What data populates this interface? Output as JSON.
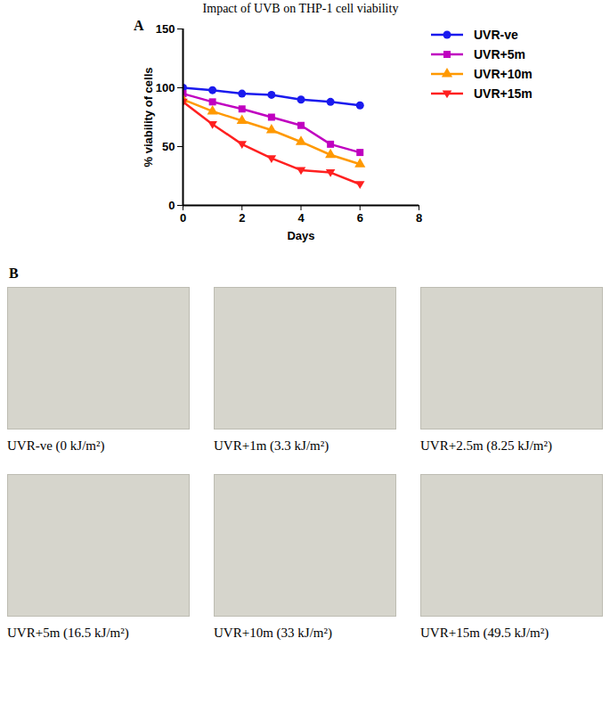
{
  "chart_data": {
    "type": "line",
    "panel_label": "A",
    "title": "Impact of UVB on THP-1 cell viability",
    "x_label": "Days",
    "y_label": "% viability of cells",
    "x": [
      0,
      1,
      2,
      3,
      4,
      5,
      6
    ],
    "series": [
      {
        "name": "UVR-ve",
        "color": "#1a1aee",
        "marker": "circle",
        "values": [
          100,
          98,
          95,
          94,
          90,
          88,
          85
        ]
      },
      {
        "name": "UVR+5m",
        "color": "#c000c0",
        "marker": "square",
        "values": [
          95,
          88,
          82,
          75,
          68,
          52,
          45
        ]
      },
      {
        "name": "UVR+10m",
        "color": "#ff9900",
        "marker": "triangle",
        "values": [
          90,
          80,
          72,
          64,
          54,
          43,
          35
        ]
      },
      {
        "name": "UVR+15m",
        "color": "#ff2020",
        "marker": "triangle-down",
        "values": [
          88,
          69,
          52,
          40,
          30,
          28,
          18
        ]
      }
    ],
    "xlim": [
      0,
      8
    ],
    "xticks": [
      0,
      2,
      4,
      6,
      8
    ],
    "ylim": [
      0,
      150
    ],
    "yticks": [
      0,
      50,
      100,
      150
    ],
    "grid": false,
    "legend": "right"
  },
  "panel_b": {
    "label": "B",
    "captions": [
      "UVR-ve (0 kJ/m²)",
      "UVR+1m (3.3 kJ/m²)",
      "UVR+2.5m (8.25 kJ/m²)",
      "UVR+5m (16.5 kJ/m²)",
      "UVR+10m (33 kJ/m²)",
      "UVR+15m (49.5 kJ/m²)"
    ]
  }
}
